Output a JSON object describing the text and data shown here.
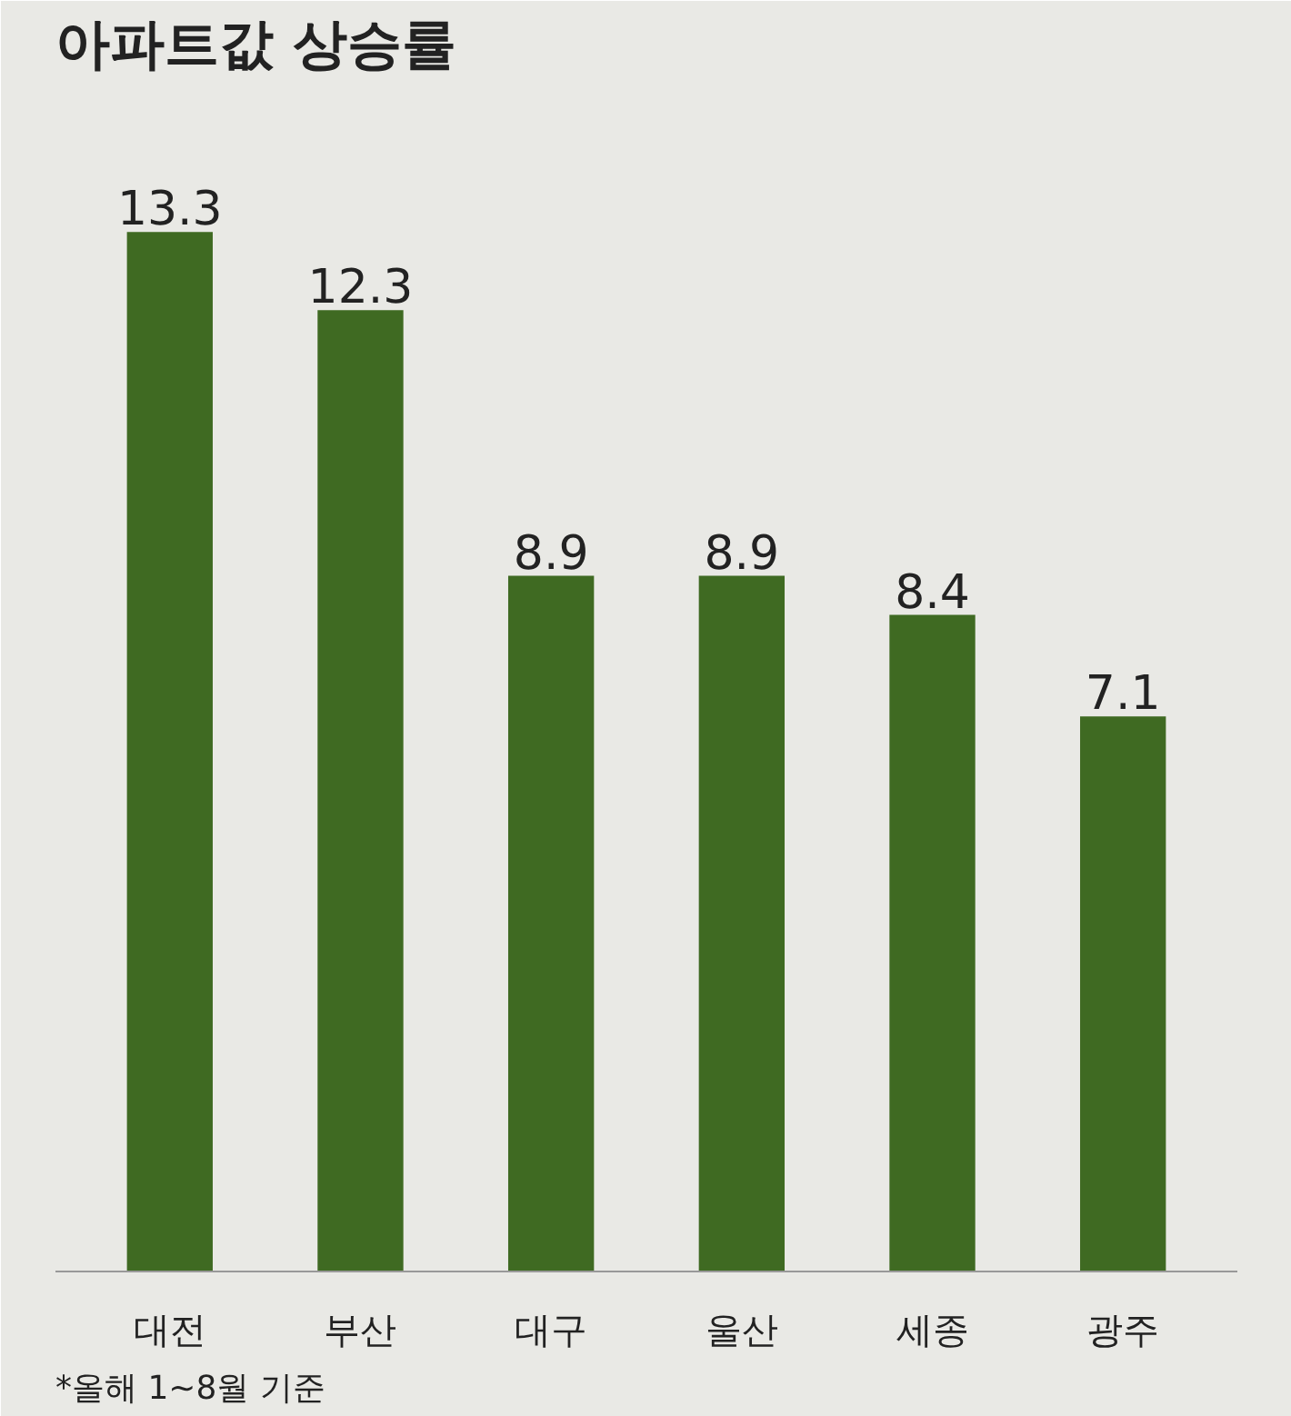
{
  "chart_data": {
    "type": "bar",
    "title": "아파트값 상승률",
    "categories": [
      "대전",
      "부산",
      "대구",
      "울산",
      "세종",
      "광주"
    ],
    "values": [
      13.3,
      12.3,
      8.9,
      8.9,
      8.4,
      7.1
    ],
    "color": "#3f6a22",
    "data_labels": true,
    "annotations": [
      "*올해 1~8월 기준"
    ]
  }
}
